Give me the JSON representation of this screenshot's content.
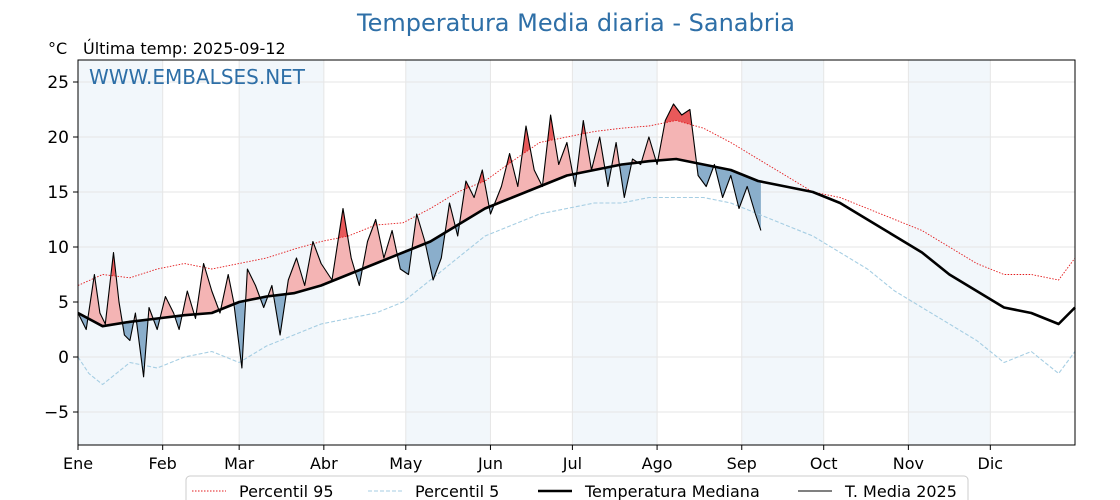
{
  "chart_data": {
    "type": "line",
    "title": "Temperatura Media diaria - Sanabria",
    "unit_label": "°C",
    "last_temp_label": "Última temp: 2025-09-12",
    "watermark": "WWW.EMBALSES.NET",
    "ylim": [
      -8,
      27
    ],
    "yticks": [
      -5,
      0,
      5,
      10,
      15,
      20,
      25
    ],
    "ytick_labels": [
      "−5",
      "0",
      "5",
      "10",
      "15",
      "20",
      "25"
    ],
    "xlim": [
      1,
      366
    ],
    "month_ticks": [
      {
        "label": "Ene",
        "day": 1
      },
      {
        "label": "Feb",
        "day": 32
      },
      {
        "label": "Mar",
        "day": 60
      },
      {
        "label": "Abr",
        "day": 91
      },
      {
        "label": "May",
        "day": 121
      },
      {
        "label": "Jun",
        "day": 152
      },
      {
        "label": "Jul",
        "day": 182
      },
      {
        "label": "Ago",
        "day": 213
      },
      {
        "label": "Sep",
        "day": 244
      },
      {
        "label": "Oct",
        "day": 274
      },
      {
        "label": "Nov",
        "day": 305
      },
      {
        "label": "Dic",
        "day": 335
      }
    ],
    "grid": true,
    "legend_position": "bottom",
    "series": [
      {
        "name": "Percentil 95",
        "color": "#e31a1c",
        "style": "dotted",
        "points": [
          [
            1,
            6.5
          ],
          [
            10,
            7.5
          ],
          [
            20,
            7.2
          ],
          [
            30,
            8.0
          ],
          [
            40,
            8.5
          ],
          [
            50,
            8.0
          ],
          [
            60,
            8.5
          ],
          [
            70,
            9.0
          ],
          [
            80,
            9.8
          ],
          [
            90,
            10.5
          ],
          [
            100,
            11.0
          ],
          [
            110,
            12.0
          ],
          [
            120,
            12.2
          ],
          [
            130,
            13.5
          ],
          [
            140,
            15.0
          ],
          [
            150,
            16.0
          ],
          [
            160,
            17.8
          ],
          [
            170,
            19.5
          ],
          [
            180,
            20.0
          ],
          [
            190,
            20.5
          ],
          [
            200,
            20.8
          ],
          [
            210,
            21.0
          ],
          [
            220,
            21.5
          ],
          [
            230,
            20.8
          ],
          [
            240,
            19.5
          ],
          [
            250,
            18.0
          ],
          [
            260,
            16.5
          ],
          [
            270,
            15.0
          ],
          [
            280,
            14.5
          ],
          [
            290,
            13.5
          ],
          [
            300,
            12.5
          ],
          [
            310,
            11.5
          ],
          [
            320,
            10.0
          ],
          [
            330,
            8.5
          ],
          [
            340,
            7.5
          ],
          [
            350,
            7.5
          ],
          [
            360,
            7.0
          ],
          [
            366,
            9.0
          ]
        ]
      },
      {
        "name": "Percentil 5",
        "color": "#a6cee3",
        "style": "dashed",
        "points": [
          [
            1,
            0
          ],
          [
            5,
            -1.5
          ],
          [
            10,
            -2.5
          ],
          [
            20,
            -0.5
          ],
          [
            30,
            -1.0
          ],
          [
            40,
            0.0
          ],
          [
            50,
            0.5
          ],
          [
            60,
            -0.5
          ],
          [
            70,
            1.0
          ],
          [
            80,
            2.0
          ],
          [
            90,
            3.0
          ],
          [
            100,
            3.5
          ],
          [
            110,
            4.0
          ],
          [
            120,
            5.0
          ],
          [
            130,
            7.0
          ],
          [
            140,
            9.0
          ],
          [
            150,
            11.0
          ],
          [
            160,
            12.0
          ],
          [
            170,
            13.0
          ],
          [
            180,
            13.5
          ],
          [
            190,
            14.0
          ],
          [
            200,
            14.0
          ],
          [
            210,
            14.5
          ],
          [
            220,
            14.5
          ],
          [
            230,
            14.5
          ],
          [
            240,
            14.0
          ],
          [
            250,
            13.0
          ],
          [
            260,
            12.0
          ],
          [
            270,
            11.0
          ],
          [
            280,
            9.5
          ],
          [
            290,
            8.0
          ],
          [
            300,
            6.0
          ],
          [
            310,
            4.5
          ],
          [
            320,
            3.0
          ],
          [
            330,
            1.5
          ],
          [
            340,
            -0.5
          ],
          [
            350,
            0.5
          ],
          [
            360,
            -1.5
          ],
          [
            366,
            0.5
          ]
        ]
      },
      {
        "name": "Temperatura Mediana",
        "color": "#000000",
        "style": "solid-thick",
        "points": [
          [
            1,
            4.0
          ],
          [
            10,
            2.8
          ],
          [
            20,
            3.2
          ],
          [
            30,
            3.5
          ],
          [
            40,
            3.8
          ],
          [
            50,
            4.0
          ],
          [
            60,
            5.0
          ],
          [
            70,
            5.5
          ],
          [
            80,
            5.8
          ],
          [
            90,
            6.5
          ],
          [
            100,
            7.5
          ],
          [
            110,
            8.5
          ],
          [
            120,
            9.5
          ],
          [
            130,
            10.5
          ],
          [
            140,
            12.0
          ],
          [
            150,
            13.5
          ],
          [
            160,
            14.5
          ],
          [
            170,
            15.5
          ],
          [
            180,
            16.5
          ],
          [
            190,
            17.0
          ],
          [
            200,
            17.5
          ],
          [
            210,
            17.8
          ],
          [
            220,
            18.0
          ],
          [
            230,
            17.5
          ],
          [
            240,
            17.0
          ],
          [
            250,
            16.0
          ],
          [
            260,
            15.5
          ],
          [
            270,
            15.0
          ],
          [
            280,
            14.0
          ],
          [
            290,
            12.5
          ],
          [
            300,
            11.0
          ],
          [
            310,
            9.5
          ],
          [
            320,
            7.5
          ],
          [
            330,
            6.0
          ],
          [
            340,
            4.5
          ],
          [
            350,
            4.0
          ],
          [
            360,
            3.0
          ],
          [
            366,
            4.5
          ]
        ]
      },
      {
        "name": "T. Media 2025",
        "color": "#000000",
        "style": "solid-thin",
        "points": [
          [
            1,
            4.0
          ],
          [
            4,
            2.5
          ],
          [
            7,
            7.5
          ],
          [
            9,
            4.0
          ],
          [
            11,
            3.0
          ],
          [
            14,
            9.5
          ],
          [
            16,
            5.0
          ],
          [
            18,
            2.0
          ],
          [
            20,
            1.5
          ],
          [
            22,
            4.0
          ],
          [
            25,
            -1.8
          ],
          [
            27,
            4.5
          ],
          [
            30,
            2.5
          ],
          [
            33,
            5.5
          ],
          [
            36,
            4.0
          ],
          [
            38,
            2.5
          ],
          [
            41,
            6.0
          ],
          [
            44,
            3.5
          ],
          [
            47,
            8.5
          ],
          [
            50,
            6.0
          ],
          [
            53,
            4.0
          ],
          [
            56,
            7.5
          ],
          [
            58,
            5.0
          ],
          [
            61,
            -1.0
          ],
          [
            63,
            8.0
          ],
          [
            66,
            6.5
          ],
          [
            69,
            4.5
          ],
          [
            72,
            6.5
          ],
          [
            75,
            2.0
          ],
          [
            78,
            7.0
          ],
          [
            81,
            9.0
          ],
          [
            84,
            6.5
          ],
          [
            87,
            10.5
          ],
          [
            90,
            8.5
          ],
          [
            94,
            7.0
          ],
          [
            98,
            13.5
          ],
          [
            101,
            9.0
          ],
          [
            104,
            6.5
          ],
          [
            107,
            10.5
          ],
          [
            110,
            12.5
          ],
          [
            113,
            9.0
          ],
          [
            116,
            11.5
          ],
          [
            119,
            8.0
          ],
          [
            122,
            7.5
          ],
          [
            125,
            13.0
          ],
          [
            128,
            10.5
          ],
          [
            131,
            7.0
          ],
          [
            134,
            9.0
          ],
          [
            137,
            14.0
          ],
          [
            140,
            11.0
          ],
          [
            143,
            16.0
          ],
          [
            146,
            14.5
          ],
          [
            149,
            17.0
          ],
          [
            152,
            13.0
          ],
          [
            156,
            15.5
          ],
          [
            159,
            18.5
          ],
          [
            162,
            15.5
          ],
          [
            165,
            21.0
          ],
          [
            168,
            17.0
          ],
          [
            171,
            15.5
          ],
          [
            174,
            22.0
          ],
          [
            177,
            17.5
          ],
          [
            180,
            19.5
          ],
          [
            183,
            15.5
          ],
          [
            186,
            21.5
          ],
          [
            189,
            17.0
          ],
          [
            192,
            20.0
          ],
          [
            195,
            15.5
          ],
          [
            198,
            19.5
          ],
          [
            201,
            14.5
          ],
          [
            204,
            18.0
          ],
          [
            207,
            17.5
          ],
          [
            210,
            20.0
          ],
          [
            213,
            17.5
          ],
          [
            216,
            21.5
          ],
          [
            219,
            23.0
          ],
          [
            222,
            22.0
          ],
          [
            225,
            22.5
          ],
          [
            228,
            16.5
          ],
          [
            231,
            15.5
          ],
          [
            234,
            17.5
          ],
          [
            237,
            14.5
          ],
          [
            240,
            16.5
          ],
          [
            243,
            13.5
          ],
          [
            246,
            15.5
          ],
          [
            249,
            13.0
          ],
          [
            251,
            11.5
          ]
        ]
      }
    ]
  }
}
